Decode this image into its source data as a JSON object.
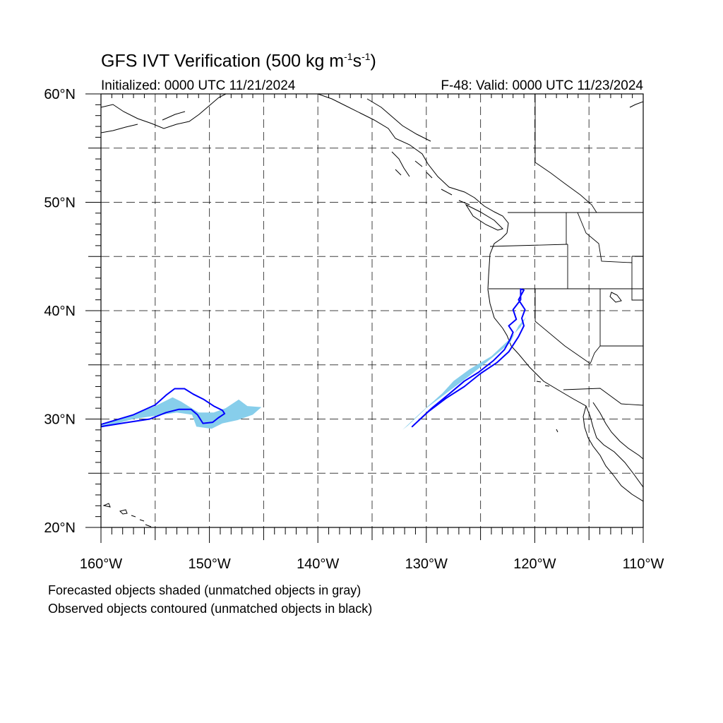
{
  "header": {
    "title_main": "GFS IVT Verification (500 kg m",
    "title_sup1": "-1",
    "title_mid": "s",
    "title_sup2": "-1",
    "title_end": ")",
    "initialized": "Initialized: 0000 UTC 11/21/2024",
    "valid": "F-48: Valid: 0000 UTC 11/23/2024"
  },
  "axes": {
    "lon_range": [
      -160,
      -110
    ],
    "lat_range": [
      20,
      60
    ],
    "x_ticks": [
      {
        "lon": -160,
        "label": "160°W"
      },
      {
        "lon": -150,
        "label": "150°W"
      },
      {
        "lon": -140,
        "label": "140°W"
      },
      {
        "lon": -130,
        "label": "130°W"
      },
      {
        "lon": -120,
        "label": "120°W"
      },
      {
        "lon": -110,
        "label": "110°W"
      }
    ],
    "y_ticks": [
      {
        "lat": 60,
        "label": "60°N"
      },
      {
        "lat": 50,
        "label": "50°N"
      },
      {
        "lat": 40,
        "label": "40°N"
      },
      {
        "lat": 30,
        "label": "30°N"
      },
      {
        "lat": 20,
        "label": "20°N"
      }
    ],
    "grid_lon": [
      -155,
      -150,
      -145,
      -140,
      -135,
      -130,
      -125,
      -120,
      -115
    ],
    "grid_lat": [
      25,
      30,
      35,
      40,
      45,
      50,
      55
    ]
  },
  "colors": {
    "forecast_fill": "#87ceeb",
    "observed_contour": "#0000ff",
    "coastline": "#000000",
    "grid": "#000000"
  },
  "objects": {
    "forecast_shaded": [
      [
        [
          -160,
          29.4
        ],
        [
          -157,
          30.4
        ],
        [
          -155,
          31.2
        ],
        [
          -153.4,
          32.0
        ],
        [
          -152.6,
          31.6
        ],
        [
          -151,
          30.6
        ],
        [
          -149.6,
          30.6
        ],
        [
          -148.5,
          31.0
        ],
        [
          -147.3,
          31.8
        ],
        [
          -146.5,
          31.2
        ],
        [
          -145.2,
          31.1
        ],
        [
          -146,
          30.4
        ],
        [
          -147.4,
          29.9
        ],
        [
          -148.8,
          29.6
        ],
        [
          -149.8,
          29.1
        ],
        [
          -151.2,
          29.3
        ],
        [
          -151.6,
          30.4
        ],
        [
          -153,
          30.6
        ],
        [
          -155,
          30.3
        ],
        [
          -157,
          30.0
        ],
        [
          -160,
          29.2
        ]
      ],
      [
        [
          -132.2,
          29.0
        ],
        [
          -130.5,
          30.6
        ],
        [
          -128.5,
          32.4
        ],
        [
          -127.5,
          33.5
        ],
        [
          -126,
          34.6
        ],
        [
          -124,
          35.8
        ],
        [
          -122.5,
          37.2
        ],
        [
          -121.3,
          38.5
        ],
        [
          -120.8,
          39.4
        ],
        [
          -121.5,
          38.6
        ],
        [
          -122.3,
          37.0
        ],
        [
          -124,
          35.6
        ],
        [
          -126,
          34.0
        ],
        [
          -128,
          32.5
        ],
        [
          -130,
          31.0
        ],
        [
          -131.7,
          29.4
        ]
      ]
    ],
    "observed_contours": [
      [
        [
          -160,
          29.5
        ],
        [
          -157,
          30.4
        ],
        [
          -155,
          31.3
        ],
        [
          -154,
          32.2
        ],
        [
          -153.2,
          32.8
        ],
        [
          -152.3,
          32.8
        ],
        [
          -151.5,
          32.3
        ],
        [
          -150.5,
          31.8
        ],
        [
          -149.6,
          31.2
        ],
        [
          -148.8,
          30.8
        ],
        [
          -148.6,
          30.5
        ],
        [
          -149.2,
          30.1
        ],
        [
          -149.7,
          29.7
        ],
        [
          -150.6,
          29.6
        ],
        [
          -151.1,
          30.4
        ],
        [
          -151.7,
          30.9
        ],
        [
          -152.8,
          30.9
        ],
        [
          -154,
          30.6
        ],
        [
          -155.5,
          30.0
        ],
        [
          -157.5,
          29.7
        ],
        [
          -160,
          29.3
        ]
      ],
      [
        [
          -131.3,
          29.3
        ],
        [
          -129.5,
          31.0
        ],
        [
          -127.8,
          32.4
        ],
        [
          -126.5,
          33.5
        ],
        [
          -125.2,
          34.3
        ],
        [
          -123.8,
          35.4
        ],
        [
          -122.8,
          36.4
        ],
        [
          -122.3,
          37.3
        ],
        [
          -122.0,
          38.0
        ],
        [
          -122.4,
          38.6
        ],
        [
          -121.7,
          39.2
        ],
        [
          -122.0,
          40.1
        ],
        [
          -121.3,
          41.0
        ],
        [
          -121.3,
          42.0
        ],
        [
          -121.0,
          41.9
        ],
        [
          -121.5,
          41.0
        ],
        [
          -120.9,
          40.1
        ],
        [
          -121.2,
          39.3
        ],
        [
          -121.0,
          38.6
        ],
        [
          -121.5,
          37.6
        ],
        [
          -122.4,
          36.2
        ],
        [
          -123.5,
          35.2
        ],
        [
          -125.0,
          34.2
        ],
        [
          -126.5,
          33.0
        ],
        [
          -128.2,
          31.9
        ],
        [
          -129.8,
          30.7
        ],
        [
          -131.3,
          29.3
        ]
      ]
    ]
  },
  "notes": [
    "Forecasted objects shaded (unmatched objects in gray)",
    "Observed objects contoured (unmatched objects in black)"
  ]
}
